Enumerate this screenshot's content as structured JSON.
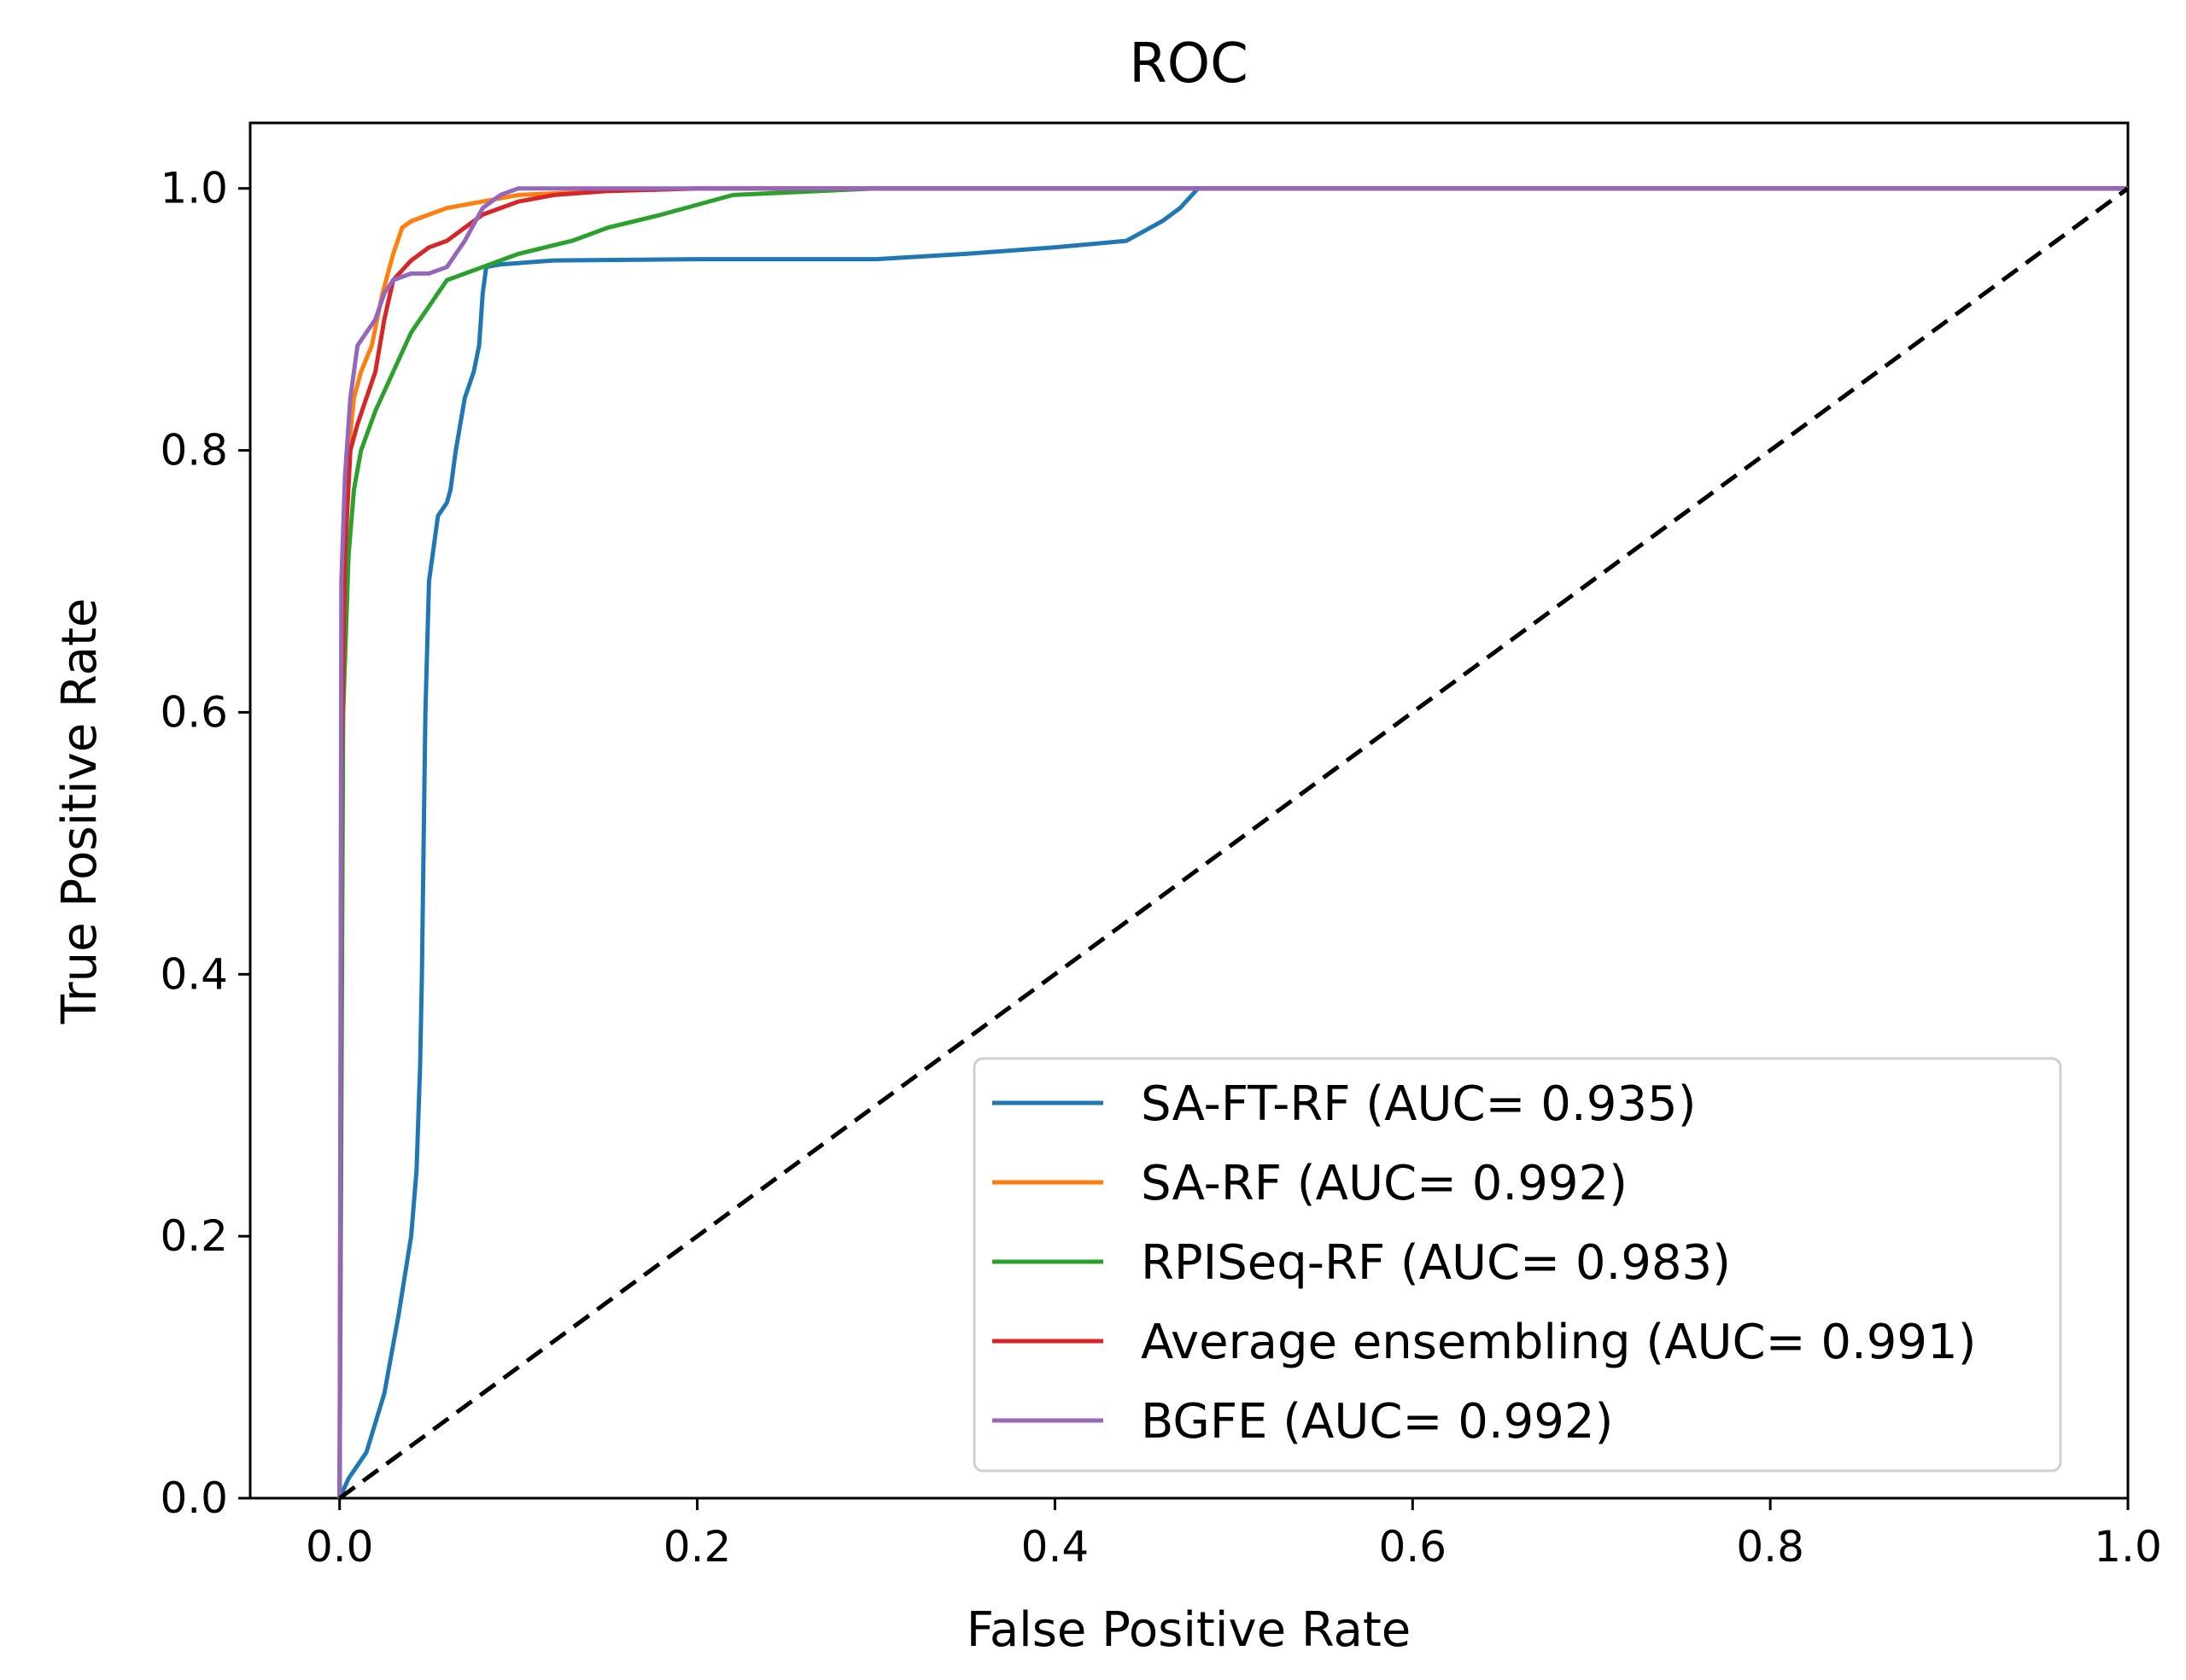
{
  "chart_data": {
    "type": "line",
    "title": "ROC",
    "xlabel": "False Positive Rate",
    "ylabel": "True Positive Rate",
    "xlim": [
      -0.05,
      1.0
    ],
    "ylim": [
      0.0,
      1.05
    ],
    "xticks": [
      0.0,
      0.2,
      0.4,
      0.6,
      0.8,
      1.0
    ],
    "xtick_labels": [
      "0.0",
      "0.2",
      "0.4",
      "0.6",
      "0.8",
      "1.0"
    ],
    "yticks": [
      0.0,
      0.2,
      0.4,
      0.6,
      0.8,
      1.0
    ],
    "ytick_labels": [
      "0.0",
      "0.2",
      "0.4",
      "0.6",
      "0.8",
      "1.0"
    ],
    "grid": false,
    "legend_position": "lower-right",
    "series": [
      {
        "name": "SA-FT-RF (AUC= 0.935)",
        "color": "#1f77b4",
        "style": "solid",
        "x": [
          0.0,
          0.005,
          0.015,
          0.025,
          0.033,
          0.04,
          0.043,
          0.045,
          0.046,
          0.047,
          0.048,
          0.05,
          0.055,
          0.06,
          0.062,
          0.065,
          0.07,
          0.075,
          0.078,
          0.08,
          0.082,
          0.09,
          0.12,
          0.2,
          0.3,
          0.35,
          0.4,
          0.44,
          0.46,
          0.47,
          0.48,
          1.0
        ],
        "y": [
          0.0,
          0.015,
          0.035,
          0.08,
          0.14,
          0.2,
          0.25,
          0.33,
          0.4,
          0.5,
          0.6,
          0.7,
          0.75,
          0.76,
          0.77,
          0.8,
          0.84,
          0.86,
          0.88,
          0.92,
          0.94,
          0.942,
          0.945,
          0.946,
          0.946,
          0.95,
          0.955,
          0.96,
          0.975,
          0.985,
          1.0,
          1.0
        ]
      },
      {
        "name": "SA-RF (AUC= 0.992)",
        "color": "#ff7f0e",
        "style": "solid",
        "x": [
          0.0,
          0.002,
          0.005,
          0.008,
          0.012,
          0.018,
          0.024,
          0.03,
          0.035,
          0.04,
          0.05,
          0.06,
          0.08,
          0.1,
          0.15,
          0.2,
          1.0
        ],
        "y": [
          0.0,
          0.7,
          0.8,
          0.84,
          0.86,
          0.88,
          0.92,
          0.95,
          0.97,
          0.975,
          0.98,
          0.985,
          0.99,
          0.995,
          0.998,
          1.0,
          1.0
        ]
      },
      {
        "name": "RPISeq-RF (AUC= 0.983)",
        "color": "#2ca02c",
        "style": "solid",
        "x": [
          0.0,
          0.002,
          0.005,
          0.008,
          0.012,
          0.02,
          0.03,
          0.04,
          0.05,
          0.06,
          0.08,
          0.1,
          0.13,
          0.15,
          0.18,
          0.22,
          0.3,
          1.0
        ],
        "y": [
          0.0,
          0.6,
          0.72,
          0.77,
          0.8,
          0.83,
          0.86,
          0.89,
          0.91,
          0.93,
          0.94,
          0.95,
          0.96,
          0.97,
          0.98,
          0.995,
          1.0,
          1.0
        ]
      },
      {
        "name": "Average ensembling (AUC= 0.991)",
        "color": "#d62728",
        "style": "solid",
        "x": [
          0.0,
          0.001,
          0.003,
          0.006,
          0.01,
          0.015,
          0.02,
          0.025,
          0.03,
          0.04,
          0.05,
          0.06,
          0.07,
          0.08,
          0.1,
          0.12,
          0.15,
          0.2,
          1.0
        ],
        "y": [
          0.0,
          0.55,
          0.72,
          0.8,
          0.82,
          0.84,
          0.86,
          0.9,
          0.93,
          0.945,
          0.955,
          0.96,
          0.97,
          0.98,
          0.99,
          0.995,
          0.998,
          1.0,
          1.0
        ]
      },
      {
        "name": "BGFE (AUC= 0.992)",
        "color": "#9467bd",
        "style": "solid",
        "x": [
          0.0,
          0.001,
          0.003,
          0.006,
          0.01,
          0.015,
          0.02,
          0.025,
          0.03,
          0.04,
          0.05,
          0.06,
          0.07,
          0.08,
          0.09,
          0.1,
          0.13,
          1.0
        ],
        "y": [
          0.0,
          0.7,
          0.78,
          0.84,
          0.88,
          0.89,
          0.9,
          0.92,
          0.93,
          0.935,
          0.935,
          0.94,
          0.96,
          0.985,
          0.995,
          1.0,
          1.0,
          1.0
        ]
      },
      {
        "name": "chance",
        "color": "#000000",
        "style": "dashed",
        "in_legend": false,
        "x": [
          0.0,
          1.0
        ],
        "y": [
          0.0,
          1.0
        ]
      }
    ]
  }
}
